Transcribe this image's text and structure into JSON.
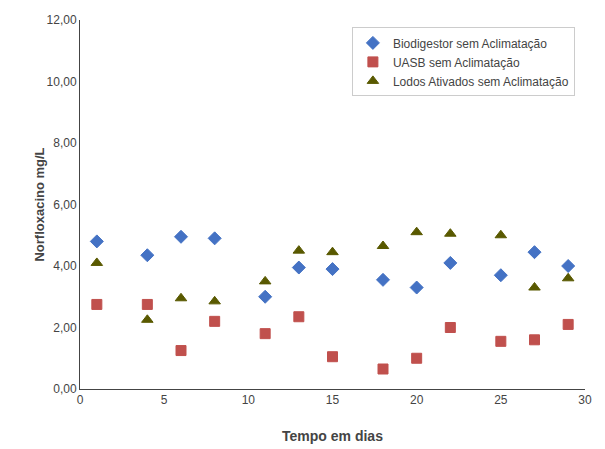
{
  "chart_data": {
    "type": "scatter",
    "x_label": "Tempo em dias",
    "y_label": "Norfloxacino mg/L",
    "series": [
      {
        "name": "Biodigestor sem Aclimatação",
        "color": "#4472C4",
        "marker": "diamond",
        "x": [
          1,
          4,
          6,
          8,
          11,
          13,
          15,
          18,
          20,
          22,
          25,
          27,
          29
        ],
        "values": [
          4.8,
          4.35,
          4.95,
          4.9,
          3.0,
          3.95,
          3.9,
          3.55,
          3.3,
          4.1,
          3.7,
          4.45,
          4.0
        ]
      },
      {
        "name": "UASB sem Aclimatação",
        "color": "#C0504D",
        "marker": "square",
        "x": [
          1,
          4,
          6,
          8,
          11,
          13,
          15,
          18,
          20,
          22,
          25,
          27,
          29
        ],
        "values": [
          2.75,
          2.75,
          1.25,
          2.2,
          1.8,
          2.35,
          1.05,
          0.65,
          1.0,
          2.0,
          1.55,
          1.6,
          2.1
        ]
      },
      {
        "name": "Lodos Ativados sem Aclimatação",
        "color": "#595900",
        "marker": "triangle-up",
        "x": [
          1,
          4,
          6,
          8,
          11,
          13,
          15,
          18,
          20,
          22,
          25,
          27,
          29
        ],
        "values": [
          4.1,
          2.25,
          2.95,
          2.85,
          3.5,
          4.5,
          4.45,
          4.65,
          5.1,
          5.05,
          5.0,
          3.3,
          3.6
        ]
      }
    ],
    "xlim": [
      0,
      30
    ],
    "xticks": [
      0,
      5,
      10,
      15,
      20,
      25,
      30
    ],
    "ylim": [
      0,
      12
    ],
    "yticks": [
      {
        "value": 0,
        "label": "0,00"
      },
      {
        "value": 2,
        "label": "2,00"
      },
      {
        "value": 4,
        "label": "4,00"
      },
      {
        "value": 6,
        "label": "6,00"
      },
      {
        "value": 8,
        "label": "8,00"
      },
      {
        "value": 10,
        "label": "10,00"
      },
      {
        "value": 12,
        "label": "12,00"
      }
    ],
    "grid": false,
    "legend": "upper right"
  }
}
